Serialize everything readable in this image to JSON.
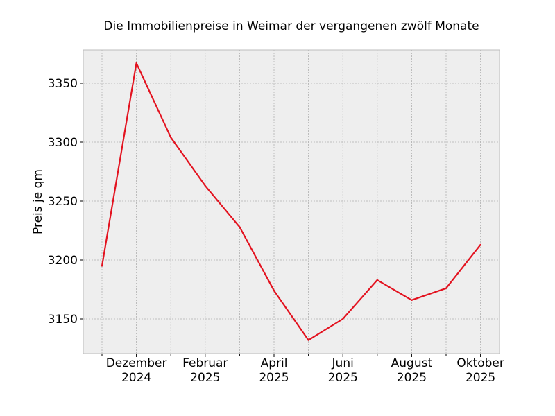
{
  "chart_data": {
    "type": "line",
    "title": "Die Immobilienpreise in Weimar der vergangenen zwölf Monate",
    "xlabel": "",
    "ylabel": "Preis je qm",
    "x": [
      "2024-11",
      "2024-12",
      "2025-01",
      "2025-02",
      "2025-03",
      "2025-04",
      "2025-05",
      "2025-06",
      "2025-07",
      "2025-08",
      "2025-09",
      "2025-10"
    ],
    "series": [
      {
        "values": [
          3195,
          3367,
          3304,
          3263,
          3228,
          3174,
          3132,
          3150,
          3183,
          3166,
          3176,
          3213
        ]
      }
    ],
    "x_ticks": [
      {
        "x": "2024-12",
        "label": [
          "Dezember",
          "2024"
        ]
      },
      {
        "x": "2025-02",
        "label": [
          "Februar",
          "2025"
        ]
      },
      {
        "x": "2025-04",
        "label": [
          "April",
          "2025"
        ]
      },
      {
        "x": "2025-06",
        "label": [
          "Juni",
          "2025"
        ]
      },
      {
        "x": "2025-08",
        "label": [
          "August",
          "2025"
        ]
      },
      {
        "x": "2025-10",
        "label": [
          "Oktober",
          "2025"
        ]
      }
    ],
    "y_ticks": [
      3150,
      3200,
      3250,
      3300,
      3350
    ],
    "ylim": [
      3120,
      3378
    ],
    "grid": true,
    "colors": {
      "line": "#e3121f",
      "plot_bg": "#eeeeee",
      "grid": "#b0b0b0",
      "frame": "#bcbcbc"
    }
  }
}
